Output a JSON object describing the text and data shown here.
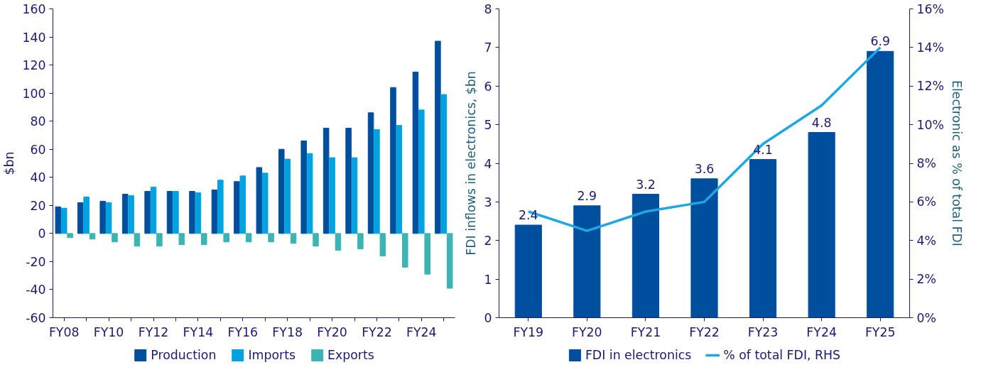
{
  "chart_data": [
    {
      "type": "bar",
      "ylabel": "$bn",
      "categories": [
        "FY08",
        null,
        "FY10",
        null,
        "FY12",
        null,
        "FY14",
        null,
        "FY16",
        null,
        "FY18",
        null,
        "FY20",
        null,
        "FY22",
        null,
        "FY24",
        null
      ],
      "series": [
        {
          "name": "Production",
          "color": "#004f9f",
          "values": [
            19,
            22,
            23,
            28,
            30,
            30,
            30,
            31,
            37,
            47,
            60,
            66,
            75,
            75,
            86,
            104,
            115,
            137
          ]
        },
        {
          "name": "Imports",
          "color": "#00a3e0",
          "values": [
            18,
            26,
            22,
            27,
            33,
            30,
            29,
            38,
            41,
            43,
            53,
            57,
            54,
            54,
            74,
            77,
            88,
            99
          ]
        },
        {
          "name": "Exports",
          "color": "#3cb4b4",
          "values": [
            -3,
            -4,
            -6,
            -9,
            -9,
            -8,
            -8,
            -6,
            -6,
            -6,
            -7,
            -9,
            -12,
            -11,
            -16,
            -24,
            -29,
            -39
          ]
        }
      ],
      "ylim": [
        -60,
        160
      ],
      "yticks": [
        -60,
        -40,
        -20,
        0,
        20,
        40,
        60,
        80,
        100,
        120,
        140,
        160
      ],
      "grid": false,
      "legend": "bottom"
    },
    {
      "type": "bar",
      "ylabel": "FDI inflows in electronics, $bn",
      "y2label": "Electronic as % of total FDI",
      "categories": [
        "FY19",
        "FY20",
        "FY21",
        "FY22",
        "FY23",
        "FY24",
        "FY25"
      ],
      "series": [
        {
          "name": "FDI in electronics",
          "color": "#004f9f",
          "values": [
            2.4,
            2.9,
            3.2,
            3.6,
            4.1,
            4.8,
            6.9
          ],
          "value_labels": [
            "2.4",
            "2.9",
            "3.2",
            "3.6",
            "4.1",
            "4.8",
            "6.9"
          ]
        },
        {
          "name": "% of total FDI, RHS",
          "type": "line",
          "axis": "y2",
          "color": "#1ea7e1",
          "values": [
            5.5,
            4.5,
            5.5,
            6,
            9,
            11,
            14
          ]
        }
      ],
      "ylim": [
        0,
        8
      ],
      "yticks": [
        0,
        1,
        2,
        3,
        4,
        5,
        6,
        7,
        8
      ],
      "y2lim": [
        0,
        16
      ],
      "y2ticks": [
        {
          "value": 0,
          "label": "0%"
        },
        {
          "value": 2,
          "label": "2%"
        },
        {
          "value": 4,
          "label": "4%"
        },
        {
          "value": 6,
          "label": "6%"
        },
        {
          "value": 8,
          "label": "8%"
        },
        {
          "value": 10,
          "label": "10%"
        },
        {
          "value": 12,
          "label": "12%"
        },
        {
          "value": 14,
          "label": "14%"
        },
        {
          "value": 16,
          "label": "16%"
        }
      ],
      "grid": false,
      "legend": "bottom"
    }
  ]
}
